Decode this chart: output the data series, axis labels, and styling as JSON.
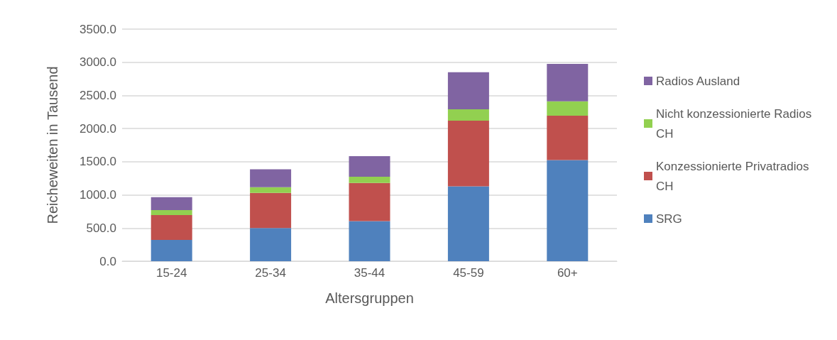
{
  "chart_data": {
    "type": "bar",
    "stacked": true,
    "xlabel": "Altersgruppen",
    "ylabel": "Reicheweiten in Tausend",
    "categories": [
      "15-24",
      "25-34",
      "35-44",
      "45-59",
      "60+"
    ],
    "series": [
      {
        "name": "SRG",
        "color": "#4f81bd",
        "values": [
          320,
          500,
          605,
          1130,
          1525
        ]
      },
      {
        "name": "Konzessionierte Privatradios CH",
        "color": "#c0504d",
        "values": [
          375,
          530,
          575,
          990,
          670
        ]
      },
      {
        "name": "Nicht konzessionierte Radios CH",
        "color": "#92d050",
        "values": [
          75,
          85,
          95,
          170,
          215
        ]
      },
      {
        "name": "Radios Ausland",
        "color": "#8064a2",
        "values": [
          195,
          270,
          310,
          560,
          565
        ]
      }
    ],
    "ylim": [
      0,
      3500
    ],
    "yticks": [
      {
        "value": 0,
        "label": "0.0"
      },
      {
        "value": 500,
        "label": "500.0"
      },
      {
        "value": 1000,
        "label": "1000.0"
      },
      {
        "value": 1500,
        "label": "1500.0"
      },
      {
        "value": 2000,
        "label": "2000.0"
      },
      {
        "value": 2500,
        "label": "2500.0"
      },
      {
        "value": 3000,
        "label": "3000.0"
      },
      {
        "value": 3500,
        "label": "3500.0"
      }
    ],
    "grid": "y",
    "legend": "right"
  }
}
